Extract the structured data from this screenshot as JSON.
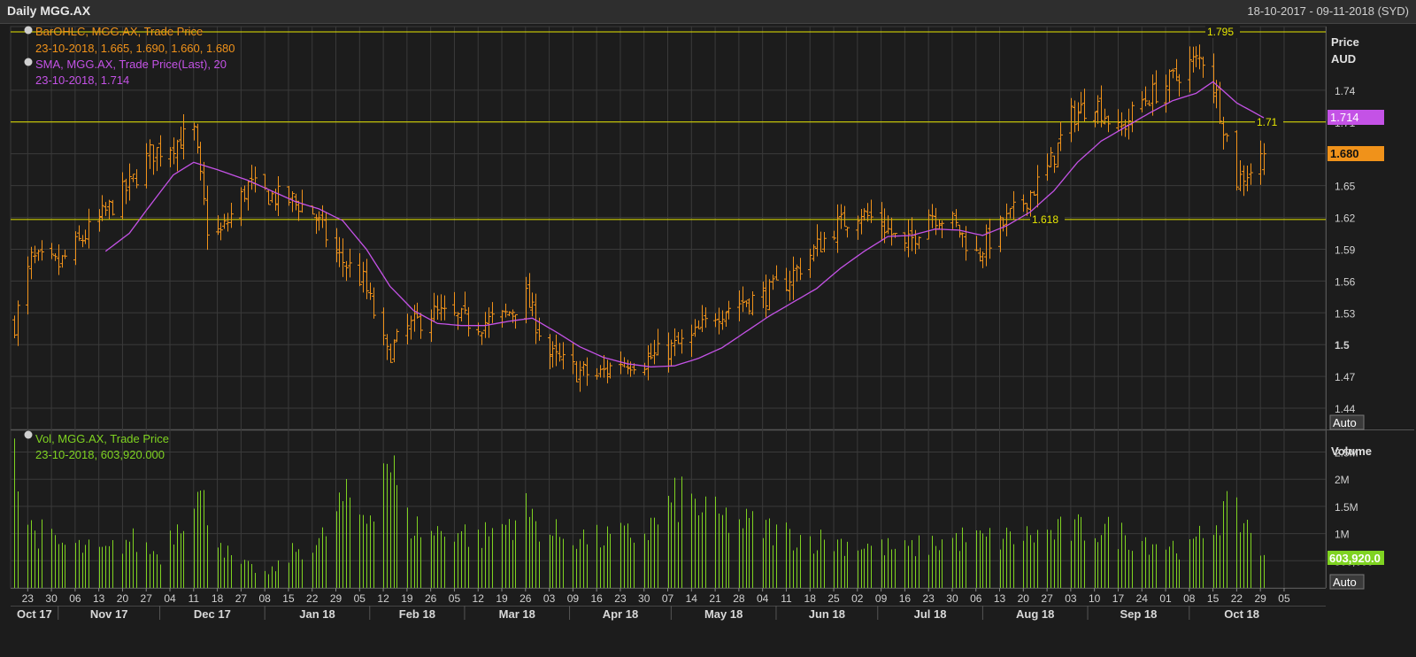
{
  "window": {
    "title": "Daily MGG.AX",
    "date_range": "18-10-2017 - 09-11-2018 (SYD)"
  },
  "price_panel": {
    "axis_title_1": "Price",
    "axis_title_2": "AUD",
    "auto_button": "Auto",
    "legend": [
      {
        "label": "BarOHLC, MGG.AX, Trade Price",
        "value": "23-10-2018, 1.665, 1.690, 1.660, 1.680",
        "color": "#f0921a"
      },
      {
        "label": "SMA, MGG.AX, Trade Price(Last),  20",
        "value": "23-10-2018, 1.714",
        "color": "#c452e6"
      }
    ],
    "y_ticks": [
      "1.74",
      "1.71",
      "1.68",
      "1.65",
      "1.62",
      "1.59",
      "1.56",
      "1.53",
      "1.5",
      "1.47",
      "1.44"
    ],
    "last_price_tag": "1.680",
    "sma_tag": "1.714",
    "h_lines": [
      {
        "value": 1.795,
        "label": "1.795"
      },
      {
        "value": 1.71,
        "label": "1.71"
      },
      {
        "value": 1.618,
        "label": "1.618"
      }
    ]
  },
  "volume_panel": {
    "axis_title": "Volume",
    "auto_button": "Auto",
    "legend": {
      "label": "Vol, MGG.AX, Trade Price",
      "value": "23-10-2018, 603,920.000",
      "color": "#7fd321"
    },
    "y_ticks": [
      "2.5M",
      "2M",
      "1.5M",
      "1M",
      "500,000"
    ],
    "last_volume_tag": "603,920.0"
  },
  "x_axis": {
    "day_ticks": [
      "23",
      "30",
      "06",
      "13",
      "20",
      "27",
      "04",
      "11",
      "18",
      "27",
      "08",
      "15",
      "22",
      "29",
      "05",
      "12",
      "19",
      "26",
      "05",
      "12",
      "19",
      "26",
      "03",
      "09",
      "16",
      "23",
      "30",
      "07",
      "14",
      "21",
      "28",
      "04",
      "11",
      "18",
      "25",
      "02",
      "09",
      "16",
      "23",
      "30",
      "06",
      "13",
      "20",
      "27",
      "03",
      "10",
      "17",
      "24",
      "01",
      "08",
      "15",
      "22",
      "29",
      "05"
    ],
    "month_labels": [
      "Oct 17",
      "Nov 17",
      "Dec 17",
      "Jan 18",
      "Feb 18",
      "Mar 18",
      "Apr 18",
      "May 18",
      "Jun 18",
      "Jul 18",
      "Aug 18",
      "Sep 18",
      "Oct 18"
    ]
  },
  "colors": {
    "ohlc": "#f0921a",
    "sma": "#c452e6",
    "volume": "#7fd321",
    "hline": "#e6e600",
    "grid": "#3a3a3a",
    "background": "#1c1c1c"
  },
  "chart_data": [
    {
      "type": "ohlc",
      "title": "BarOHLC, MGG.AX, Trade Price",
      "ylabel": "Price AUD",
      "ylim": [
        1.42,
        1.8
      ],
      "grid": true,
      "x_start": "2017-10-19",
      "x_end": "2018-10-23",
      "series": [
        {
          "name": "BarOHLC, MGG.AX, Trade Price",
          "anchors": [
            [
              "2017-10-19",
              1.52
            ],
            [
              "2017-10-24",
              1.58
            ],
            [
              "2017-11-01",
              1.575
            ],
            [
              "2017-11-08",
              1.6
            ],
            [
              "2017-11-15",
              1.625
            ],
            [
              "2017-11-22",
              1.65
            ],
            [
              "2017-11-28",
              1.68
            ],
            [
              "2017-12-05",
              1.69
            ],
            [
              "2017-12-11",
              1.7
            ],
            [
              "2017-12-15",
              1.61
            ],
            [
              "2017-12-19",
              1.605
            ],
            [
              "2017-12-27",
              1.65
            ],
            [
              "2018-01-03",
              1.64
            ],
            [
              "2018-01-10",
              1.635
            ],
            [
              "2018-01-15",
              1.625
            ],
            [
              "2018-01-22",
              1.585
            ],
            [
              "2018-01-30",
              1.56
            ],
            [
              "2018-02-06",
              1.49
            ],
            [
              "2018-02-12",
              1.515
            ],
            [
              "2018-02-19",
              1.53
            ],
            [
              "2018-02-26",
              1.525
            ],
            [
              "2018-03-05",
              1.52
            ],
            [
              "2018-03-12",
              1.525
            ],
            [
              "2018-03-19",
              1.545
            ],
            [
              "2018-03-26",
              1.49
            ],
            [
              "2018-04-03",
              1.475
            ],
            [
              "2018-04-09",
              1.47
            ],
            [
              "2018-04-16",
              1.485
            ],
            [
              "2018-04-23",
              1.485
            ],
            [
              "2018-04-30",
              1.495
            ],
            [
              "2018-05-07",
              1.505
            ],
            [
              "2018-05-14",
              1.53
            ],
            [
              "2018-05-21",
              1.54
            ],
            [
              "2018-05-28",
              1.545
            ],
            [
              "2018-06-04",
              1.56
            ],
            [
              "2018-06-11",
              1.585
            ],
            [
              "2018-06-18",
              1.61
            ],
            [
              "2018-06-25",
              1.625
            ],
            [
              "2018-07-02",
              1.615
            ],
            [
              "2018-07-09",
              1.59
            ],
            [
              "2018-07-16",
              1.625
            ],
            [
              "2018-07-23",
              1.615
            ],
            [
              "2018-07-30",
              1.585
            ],
            [
              "2018-08-06",
              1.61
            ],
            [
              "2018-08-13",
              1.635
            ],
            [
              "2018-08-20",
              1.665
            ],
            [
              "2018-08-27",
              1.715
            ],
            [
              "2018-09-03",
              1.73
            ],
            [
              "2018-09-10",
              1.7
            ],
            [
              "2018-09-17",
              1.73
            ],
            [
              "2018-09-24",
              1.745
            ],
            [
              "2018-10-01",
              1.765
            ],
            [
              "2018-10-05",
              1.77
            ],
            [
              "2018-10-09",
              1.735
            ],
            [
              "2018-10-15",
              1.655
            ],
            [
              "2018-10-19",
              1.665
            ],
            [
              "2018-10-23",
              1.68
            ]
          ]
        },
        {
          "name": "SMA, MGG.AX, Trade Price(Last),  20",
          "anchors": [
            [
              "2017-11-15",
              1.588
            ],
            [
              "2017-11-22",
              1.605
            ],
            [
              "2017-11-29",
              1.635
            ],
            [
              "2017-12-05",
              1.66
            ],
            [
              "2017-12-11",
              1.672
            ],
            [
              "2017-12-18",
              1.665
            ],
            [
              "2017-12-27",
              1.655
            ],
            [
              "2018-01-03",
              1.645
            ],
            [
              "2018-01-10",
              1.635
            ],
            [
              "2018-01-17",
              1.628
            ],
            [
              "2018-01-24",
              1.617
            ],
            [
              "2018-01-31",
              1.59
            ],
            [
              "2018-02-07",
              1.555
            ],
            [
              "2018-02-14",
              1.532
            ],
            [
              "2018-02-21",
              1.52
            ],
            [
              "2018-02-28",
              1.518
            ],
            [
              "2018-03-07",
              1.518
            ],
            [
              "2018-03-14",
              1.522
            ],
            [
              "2018-03-21",
              1.525
            ],
            [
              "2018-03-28",
              1.512
            ],
            [
              "2018-04-04",
              1.498
            ],
            [
              "2018-04-11",
              1.488
            ],
            [
              "2018-04-18",
              1.482
            ],
            [
              "2018-04-25",
              1.479
            ],
            [
              "2018-05-02",
              1.48
            ],
            [
              "2018-05-09",
              1.487
            ],
            [
              "2018-05-16",
              1.497
            ],
            [
              "2018-05-23",
              1.512
            ],
            [
              "2018-05-30",
              1.527
            ],
            [
              "2018-06-06",
              1.54
            ],
            [
              "2018-06-13",
              1.553
            ],
            [
              "2018-06-20",
              1.572
            ],
            [
              "2018-06-27",
              1.588
            ],
            [
              "2018-07-04",
              1.602
            ],
            [
              "2018-07-11",
              1.603
            ],
            [
              "2018-07-18",
              1.609
            ],
            [
              "2018-07-25",
              1.608
            ],
            [
              "2018-08-01",
              1.603
            ],
            [
              "2018-08-08",
              1.612
            ],
            [
              "2018-08-15",
              1.625
            ],
            [
              "2018-08-22",
              1.645
            ],
            [
              "2018-08-29",
              1.672
            ],
            [
              "2018-09-05",
              1.692
            ],
            [
              "2018-09-12",
              1.705
            ],
            [
              "2018-09-19",
              1.718
            ],
            [
              "2018-09-26",
              1.73
            ],
            [
              "2018-10-03",
              1.737
            ],
            [
              "2018-10-08",
              1.748
            ],
            [
              "2018-10-15",
              1.728
            ],
            [
              "2018-10-23",
              1.714
            ]
          ]
        }
      ],
      "h_lines": [
        1.795,
        1.71,
        1.618
      ]
    },
    {
      "type": "bar",
      "title": "Vol, MGG.AX, Trade Price",
      "ylabel": "Volume",
      "ylim": [
        0,
        2900000
      ],
      "x_start": "2017-10-19",
      "x_end": "2018-10-23",
      "series": [
        {
          "name": "Vol, MGG.AX, Trade Price",
          "anchors": [
            [
              "2017-10-19",
              2750000
            ],
            [
              "2017-10-20",
              1800000
            ],
            [
              "2017-10-24",
              1100000
            ],
            [
              "2017-11-01",
              800000
            ],
            [
              "2017-11-15",
              650000
            ],
            [
              "2017-11-22",
              900000
            ],
            [
              "2017-12-01",
              600000
            ],
            [
              "2017-12-11",
              1800000
            ],
            [
              "2017-12-15",
              1400000
            ],
            [
              "2017-12-22",
              500000
            ],
            [
              "2018-01-02",
              250000
            ],
            [
              "2018-01-10",
              700000
            ],
            [
              "2018-01-17",
              800000
            ],
            [
              "2018-01-24",
              1600000
            ],
            [
              "2018-01-31",
              1300000
            ],
            [
              "2018-02-06",
              2500000
            ],
            [
              "2018-02-12",
              1200000
            ],
            [
              "2018-02-19",
              1000000
            ],
            [
              "2018-02-26",
              1100000
            ],
            [
              "2018-03-05",
              900000
            ],
            [
              "2018-03-19",
              1400000
            ],
            [
              "2018-03-26",
              1000000
            ],
            [
              "2018-04-09",
              900000
            ],
            [
              "2018-04-23",
              1000000
            ],
            [
              "2018-05-04",
              1700000
            ],
            [
              "2018-05-14",
              1300000
            ],
            [
              "2018-05-28",
              1100000
            ],
            [
              "2018-06-11",
              900000
            ],
            [
              "2018-06-25",
              800000
            ],
            [
              "2018-07-09",
              700000
            ],
            [
              "2018-07-23",
              900000
            ],
            [
              "2018-08-06",
              900000
            ],
            [
              "2018-08-20",
              1000000
            ],
            [
              "2018-09-03",
              1100000
            ],
            [
              "2018-09-17",
              900000
            ],
            [
              "2018-10-01",
              700000
            ],
            [
              "2018-10-11",
              1400000
            ],
            [
              "2018-10-18",
              1200000
            ],
            [
              "2018-10-23",
              603920
            ]
          ]
        }
      ]
    }
  ]
}
